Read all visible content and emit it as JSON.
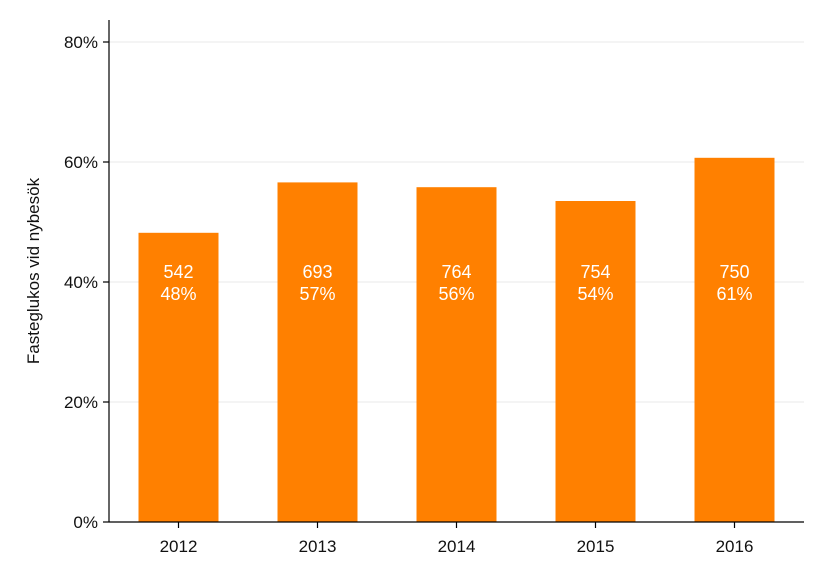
{
  "chart_data": {
    "type": "bar",
    "ylabel": "Fasteglukos vid nybesök",
    "xlabel": "",
    "title": "",
    "categories": [
      "2012",
      "2013",
      "2014",
      "2015",
      "2016"
    ],
    "values": [
      0.482,
      0.566,
      0.558,
      0.535,
      0.607
    ],
    "counts": [
      "542",
      "693",
      "764",
      "754",
      "750"
    ],
    "percent_labels": [
      "48%",
      "57%",
      "56%",
      "54%",
      "61%"
    ],
    "ylim": [
      0,
      0.8
    ],
    "yticks": [
      0,
      0.2,
      0.4,
      0.6,
      0.8
    ],
    "ytick_labels": [
      "0%",
      "20%",
      "40%",
      "60%",
      "80%"
    ],
    "grid": true,
    "bar_color": "#ff8000",
    "label_color": "#ffffff"
  }
}
